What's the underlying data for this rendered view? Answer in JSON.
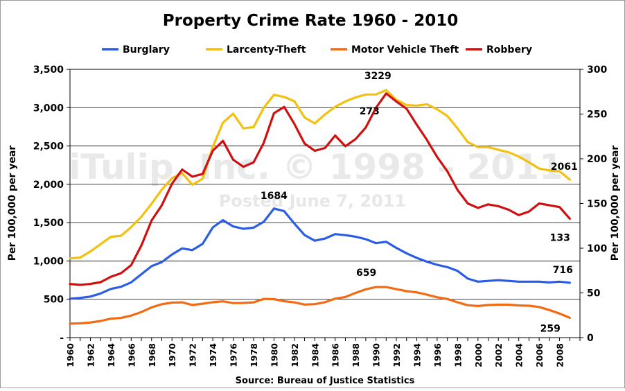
{
  "chart_data": {
    "type": "line",
    "title": "Property Crime Rate 1960  - 2010",
    "source": "Source: Bureau of Justice Statistics",
    "watermark": "iTulip, Inc. © 1998 – 2011",
    "watermark_sub": "Posted June 7, 2011",
    "ylabel_left": "Per 100,000 per year",
    "ylabel_right": "Per 100,000 per year",
    "ylim_left": [
      0,
      3500
    ],
    "ylim_right": [
      0,
      300
    ],
    "yticks_left": [
      "-",
      "500",
      "1,000",
      "1,500",
      "2,000",
      "2,500",
      "3,000",
      "3,500"
    ],
    "yticks_right": [
      "0",
      "50",
      "100",
      "150",
      "200",
      "250",
      "300"
    ],
    "xticks": [
      "1960",
      "1962",
      "1964",
      "1966",
      "1968",
      "1970",
      "1972",
      "1974",
      "1976",
      "1978",
      "1980",
      "1982",
      "1984",
      "1986",
      "1988",
      "1990",
      "1992",
      "1994",
      "1996",
      "1998",
      "2000",
      "2002",
      "2004",
      "2006",
      "2008"
    ],
    "grid": "horizontal",
    "legend_position": "top",
    "years": [
      1960,
      1961,
      1962,
      1963,
      1964,
      1965,
      1966,
      1967,
      1968,
      1969,
      1970,
      1971,
      1972,
      1973,
      1974,
      1975,
      1976,
      1977,
      1978,
      1979,
      1980,
      1981,
      1982,
      1983,
      1984,
      1985,
      1986,
      1987,
      1988,
      1989,
      1990,
      1991,
      1992,
      1993,
      1994,
      1995,
      1996,
      1997,
      1998,
      1999,
      2000,
      2001,
      2002,
      2003,
      2004,
      2005,
      2006,
      2007,
      2008,
      2009
    ],
    "series": [
      {
        "name": "Burglary",
        "axis": "left",
        "color": "#2b5ce6",
        "values": [
          508,
          518,
          535,
          576,
          635,
          663,
          721,
          827,
          932,
          985,
          1084,
          1164,
          1141,
          1223,
          1438,
          1532,
          1451,
          1420,
          1434,
          1511,
          1684,
          1650,
          1489,
          1338,
          1264,
          1292,
          1350,
          1337,
          1317,
          1284,
          1233,
          1250,
          1170,
          1100,
          1040,
          990,
          950,
          920,
          870,
          770,
          730,
          740,
          750,
          740,
          730,
          730,
          730,
          720,
          730,
          716
        ]
      },
      {
        "name": "Larcenty-Theft",
        "axis": "left",
        "color": "#f4c010",
        "values": [
          1034,
          1045,
          1124,
          1219,
          1315,
          1329,
          1442,
          1576,
          1747,
          1931,
          2079,
          2145,
          1994,
          2072,
          2490,
          2805,
          2921,
          2730,
          2747,
          2999,
          3167,
          3140,
          3084,
          2871,
          2795,
          2911,
          3011,
          3081,
          3134,
          3172,
          3173,
          3229,
          3103,
          3033,
          3027,
          3044,
          2978,
          2891,
          2729,
          2550,
          2485,
          2485,
          2450,
          2417,
          2362,
          2287,
          2206,
          2180,
          2170,
          2061
        ]
      },
      {
        "name": "Motor Vehicle Theft",
        "axis": "left",
        "color": "#f26b12",
        "values": [
          183,
          186,
          197,
          217,
          247,
          257,
          287,
          334,
          394,
          436,
          457,
          460,
          426,
          442,
          462,
          473,
          450,
          452,
          460,
          505,
          502,
          475,
          459,
          431,
          437,
          462,
          508,
          530,
          583,
          630,
          659,
          659,
          632,
          606,
          591,
          560,
          526,
          505,
          460,
          422,
          412,
          425,
          430,
          430,
          420,
          416,
          400,
          360,
          314,
          259
        ]
      },
      {
        "name": "Robbery",
        "axis": "right",
        "color": "#d01010",
        "values": [
          60,
          59,
          60,
          62,
          68,
          72,
          81,
          103,
          131,
          148,
          172,
          188,
          180,
          183,
          209,
          220,
          199,
          191,
          196,
          218,
          251,
          258,
          239,
          217,
          209,
          212,
          226,
          214,
          222,
          235,
          257,
          273,
          264,
          256,
          238,
          221,
          202,
          186,
          165,
          150,
          145,
          149,
          147,
          143,
          137,
          141,
          150,
          148,
          146,
          133
        ]
      }
    ],
    "annotations": [
      {
        "text": "3229",
        "series": "Larcenty-Theft",
        "year": 1991
      },
      {
        "text": "2061",
        "series": "Larcenty-Theft",
        "year": 2009
      },
      {
        "text": "273",
        "series": "Robbery",
        "year": 1991
      },
      {
        "text": "133",
        "series": "Robbery",
        "year": 2009
      },
      {
        "text": "1684",
        "series": "Burglary",
        "year": 1980
      },
      {
        "text": "716",
        "series": "Burglary",
        "year": 2009
      },
      {
        "text": "659",
        "series": "Motor Vehicle Theft",
        "year": 1990
      },
      {
        "text": "259",
        "series": "Motor Vehicle Theft",
        "year": 2009
      }
    ]
  }
}
